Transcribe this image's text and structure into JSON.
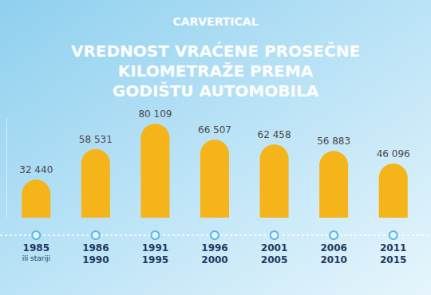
{
  "chart_data": {
    "type": "bar",
    "title": "VREDNOST VRAĆENE PROSEČNE\nKILOMETRAŽE PREMA\nGODIŠTU AUTOMOBILA",
    "annotations": [
      "CARVERTICAL"
    ],
    "categories": [
      "1985\nili stariji",
      "1986\n1990",
      "1991\n1995",
      "1996\n2000",
      "2001\n2005",
      "2006\n2010",
      "2011\n2015"
    ],
    "values": [
      32440,
      58531,
      80109,
      66507,
      62458,
      56883,
      46096
    ],
    "value_labels": [
      "32 440",
      "58 531",
      "80 109",
      "66 507",
      "62 458",
      "56 883",
      "46 096"
    ],
    "color": "#f4b41a",
    "ylim": [
      0,
      85000
    ],
    "grid": false,
    "data_labels": true,
    "tick_labels": "x"
  }
}
